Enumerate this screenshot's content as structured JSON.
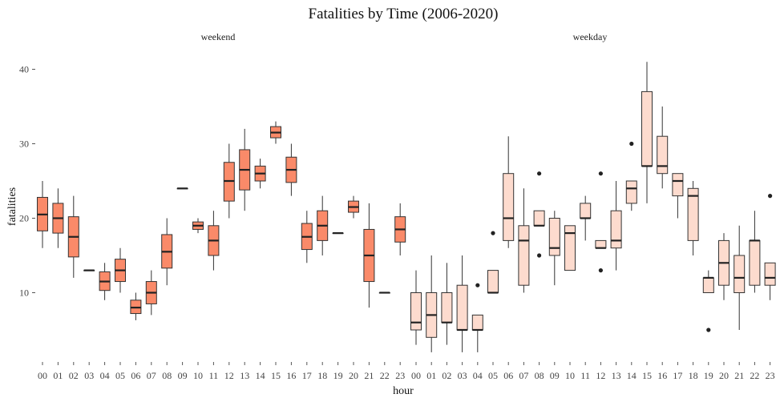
{
  "chart_data": {
    "type": "box",
    "title": "Fatalities by Time (2006-2020)",
    "xlabel": "hour",
    "ylabel": "fatalities",
    "ylim": [
      0,
      42
    ],
    "yticks": [
      10,
      20,
      30,
      40
    ],
    "grid": false,
    "categories": [
      "00",
      "01",
      "02",
      "03",
      "04",
      "05",
      "06",
      "07",
      "08",
      "09",
      "10",
      "11",
      "12",
      "13",
      "14",
      "15",
      "16",
      "17",
      "18",
      "19",
      "20",
      "21",
      "22",
      "23"
    ],
    "facets": [
      {
        "name": "weekend",
        "color": "#FA8A69",
        "boxes": [
          {
            "q1": 18.3,
            "median": 20.5,
            "q3": 22.8,
            "low": 16,
            "high": 25,
            "outliers": []
          },
          {
            "q1": 18.0,
            "median": 20.0,
            "q3": 22.0,
            "low": 16,
            "high": 24,
            "outliers": []
          },
          {
            "q1": 14.8,
            "median": 17.5,
            "q3": 20.2,
            "low": 12,
            "high": 23,
            "outliers": []
          },
          {
            "q1": 13.0,
            "median": 13.0,
            "q3": 13.0,
            "low": 13,
            "high": 13,
            "outliers": []
          },
          {
            "q1": 10.3,
            "median": 11.5,
            "q3": 12.8,
            "low": 9,
            "high": 14,
            "outliers": []
          },
          {
            "q1": 11.5,
            "median": 13.0,
            "q3": 14.5,
            "low": 10,
            "high": 16,
            "outliers": []
          },
          {
            "q1": 7.2,
            "median": 8.0,
            "q3": 9.0,
            "low": 6.3,
            "high": 10,
            "outliers": []
          },
          {
            "q1": 8.5,
            "median": 10.0,
            "q3": 11.5,
            "low": 7,
            "high": 13,
            "outliers": []
          },
          {
            "q1": 13.3,
            "median": 15.5,
            "q3": 17.8,
            "low": 11,
            "high": 20,
            "outliers": []
          },
          {
            "q1": 24.0,
            "median": 24.0,
            "q3": 24.0,
            "low": 24,
            "high": 24,
            "outliers": []
          },
          {
            "q1": 18.5,
            "median": 19.0,
            "q3": 19.5,
            "low": 18,
            "high": 20,
            "outliers": []
          },
          {
            "q1": 15.0,
            "median": 17.0,
            "q3": 19.0,
            "low": 13,
            "high": 21,
            "outliers": []
          },
          {
            "q1": 22.3,
            "median": 25.0,
            "q3": 27.5,
            "low": 20,
            "high": 30,
            "outliers": []
          },
          {
            "q1": 23.8,
            "median": 26.5,
            "q3": 29.2,
            "low": 21,
            "high": 32,
            "outliers": []
          },
          {
            "q1": 25.0,
            "median": 26.0,
            "q3": 27.0,
            "low": 24,
            "high": 28,
            "outliers": []
          },
          {
            "q1": 30.8,
            "median": 31.5,
            "q3": 32.3,
            "low": 30,
            "high": 33,
            "outliers": []
          },
          {
            "q1": 24.8,
            "median": 26.5,
            "q3": 28.2,
            "low": 23,
            "high": 30,
            "outliers": []
          },
          {
            "q1": 15.8,
            "median": 17.5,
            "q3": 19.3,
            "low": 14,
            "high": 21,
            "outliers": []
          },
          {
            "q1": 17.0,
            "median": 19.0,
            "q3": 21.0,
            "low": 15,
            "high": 23,
            "outliers": []
          },
          {
            "q1": 18.0,
            "median": 18.0,
            "q3": 18.0,
            "low": 18,
            "high": 18,
            "outliers": []
          },
          {
            "q1": 20.8,
            "median": 21.5,
            "q3": 22.3,
            "low": 20,
            "high": 23,
            "outliers": []
          },
          {
            "q1": 11.5,
            "median": 15.0,
            "q3": 18.5,
            "low": 8,
            "high": 22,
            "outliers": []
          },
          {
            "q1": 10.0,
            "median": 10.0,
            "q3": 10.0,
            "low": 10,
            "high": 10,
            "outliers": []
          },
          {
            "q1": 16.8,
            "median": 18.5,
            "q3": 20.2,
            "low": 15,
            "high": 22,
            "outliers": []
          }
        ]
      },
      {
        "name": "weekday",
        "color": "#FDDBCE",
        "boxes": [
          {
            "q1": 5.0,
            "median": 6.0,
            "q3": 10.0,
            "low": 3,
            "high": 13,
            "outliers": []
          },
          {
            "q1": 4.0,
            "median": 7.0,
            "q3": 10.0,
            "low": 2,
            "high": 15,
            "outliers": []
          },
          {
            "q1": 6.0,
            "median": 6.0,
            "q3": 10.0,
            "low": 3,
            "high": 14,
            "outliers": []
          },
          {
            "q1": 5.0,
            "median": 5.0,
            "q3": 11.0,
            "low": 2,
            "high": 15,
            "outliers": []
          },
          {
            "q1": 5.0,
            "median": 5.0,
            "q3": 7.0,
            "low": 2,
            "high": 7,
            "outliers": [
              11
            ]
          },
          {
            "q1": 10.0,
            "median": 10.0,
            "q3": 13.0,
            "low": 10,
            "high": 13,
            "outliers": [
              18
            ]
          },
          {
            "q1": 17.0,
            "median": 20.0,
            "q3": 26.0,
            "low": 16,
            "high": 31,
            "outliers": []
          },
          {
            "q1": 11.0,
            "median": 17.0,
            "q3": 19.0,
            "low": 10,
            "high": 24,
            "outliers": []
          },
          {
            "q1": 19.0,
            "median": 19.0,
            "q3": 21.0,
            "low": 19,
            "high": 21,
            "outliers": [
              15,
              26
            ]
          },
          {
            "q1": 15.0,
            "median": 16.0,
            "q3": 20.0,
            "low": 11,
            "high": 21,
            "outliers": []
          },
          {
            "q1": 13.0,
            "median": 18.0,
            "q3": 19.0,
            "low": 13,
            "high": 19,
            "outliers": []
          },
          {
            "q1": 20.0,
            "median": 20.0,
            "q3": 22.0,
            "low": 17,
            "high": 23,
            "outliers": []
          },
          {
            "q1": 16.0,
            "median": 16.0,
            "q3": 17.0,
            "low": 16,
            "high": 17,
            "outliers": [
              13,
              26
            ]
          },
          {
            "q1": 16.0,
            "median": 17.0,
            "q3": 21.0,
            "low": 13,
            "high": 25,
            "outliers": []
          },
          {
            "q1": 22.0,
            "median": 24.0,
            "q3": 25.0,
            "low": 21,
            "high": 25,
            "outliers": [
              30
            ]
          },
          {
            "q1": 27.0,
            "median": 27.0,
            "q3": 37.0,
            "low": 22,
            "high": 41,
            "outliers": []
          },
          {
            "q1": 26.0,
            "median": 27.0,
            "q3": 31.0,
            "low": 24,
            "high": 35,
            "outliers": []
          },
          {
            "q1": 23.0,
            "median": 25.0,
            "q3": 26.0,
            "low": 20,
            "high": 26,
            "outliers": []
          },
          {
            "q1": 17.0,
            "median": 23.0,
            "q3": 24.0,
            "low": 15,
            "high": 25,
            "outliers": []
          },
          {
            "q1": 10.0,
            "median": 12.0,
            "q3": 12.0,
            "low": 10,
            "high": 13,
            "outliers": [
              5
            ]
          },
          {
            "q1": 11.0,
            "median": 14.0,
            "q3": 17.0,
            "low": 9,
            "high": 18,
            "outliers": []
          },
          {
            "q1": 10.0,
            "median": 12.0,
            "q3": 15.0,
            "low": 5,
            "high": 19,
            "outliers": []
          },
          {
            "q1": 11.0,
            "median": 17.0,
            "q3": 17.0,
            "low": 10,
            "high": 21,
            "outliers": []
          },
          {
            "q1": 11.0,
            "median": 12.0,
            "q3": 14.0,
            "low": 9,
            "high": 14,
            "outliers": [
              23
            ]
          }
        ]
      }
    ]
  }
}
